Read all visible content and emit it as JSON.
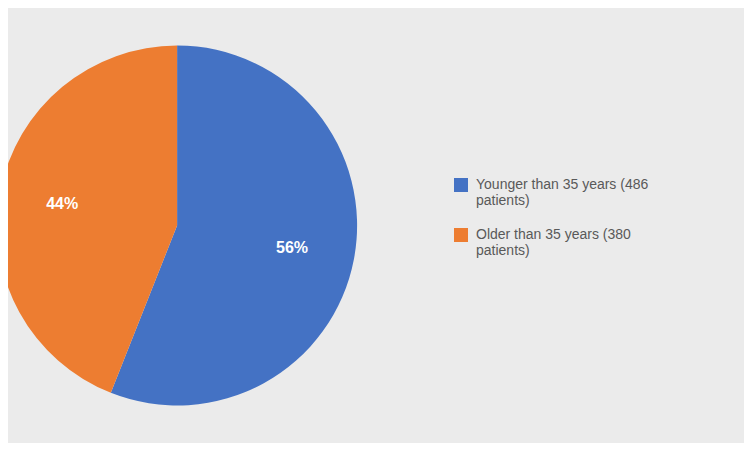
{
  "chart_data": {
    "type": "pie",
    "categories": [
      "Younger than 35 years (486\npatients)",
      "Older than 35 years (380\npatients)"
    ],
    "values": [
      56,
      44
    ],
    "value_labels": [
      "56%",
      "44%"
    ],
    "colors": [
      "#4472C4",
      "#ED7D31"
    ],
    "data_labels": true,
    "legend": "right"
  }
}
